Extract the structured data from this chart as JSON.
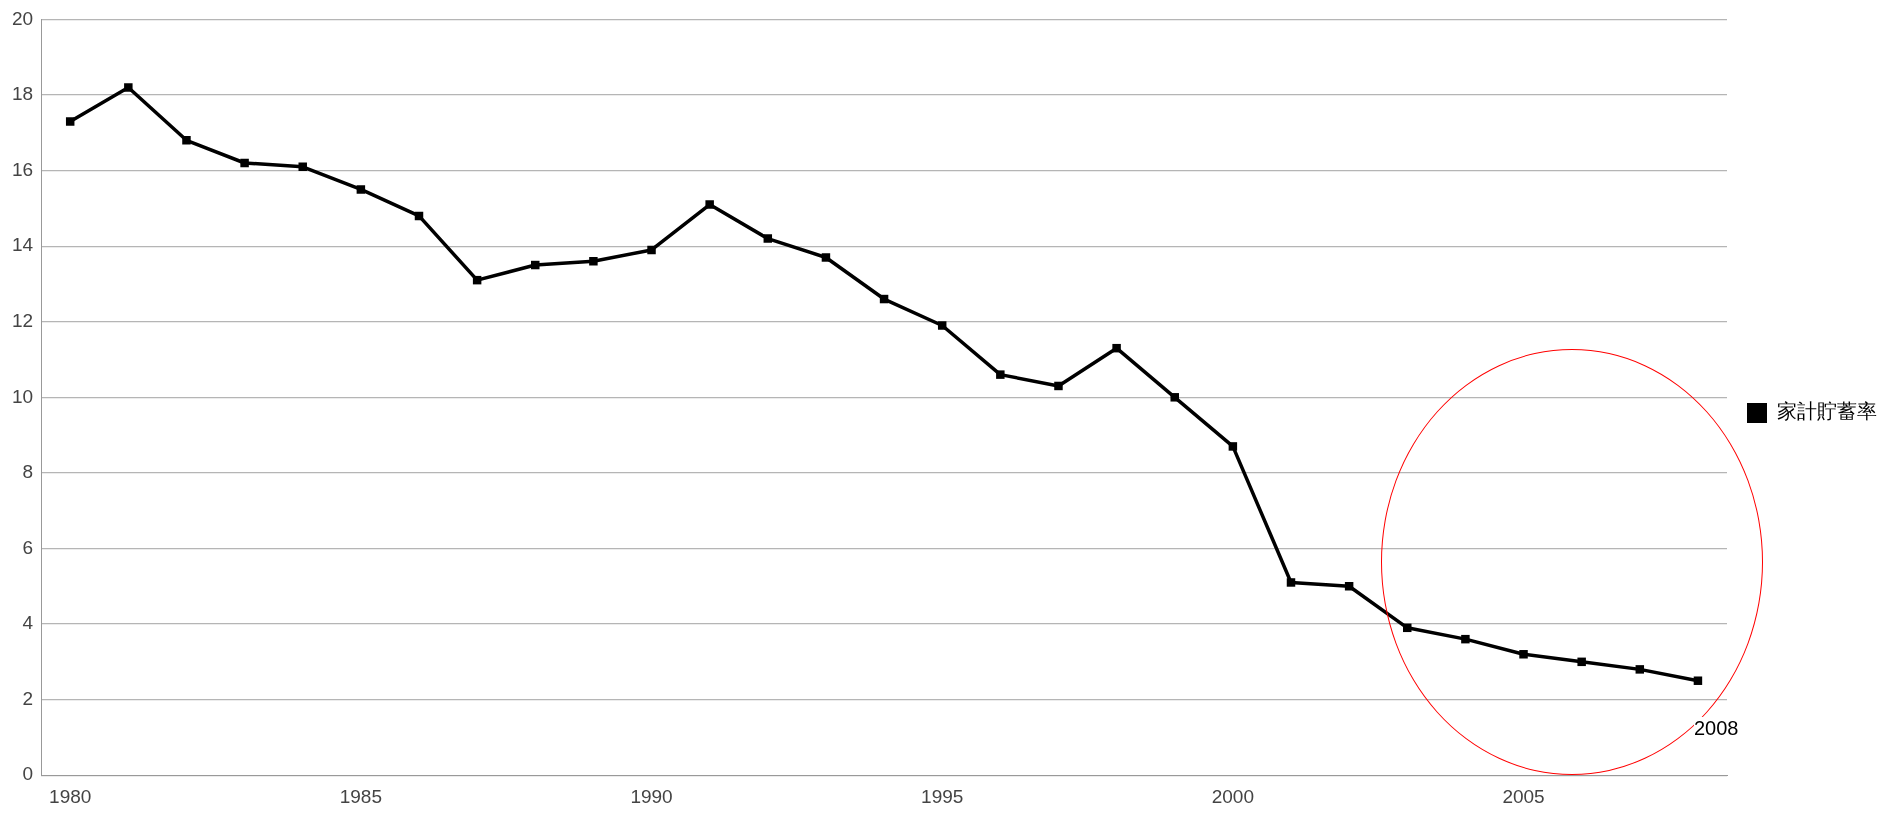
{
  "chart_data": {
    "type": "line",
    "categories": [
      "1980",
      null,
      null,
      null,
      null,
      "1985",
      null,
      null,
      null,
      null,
      "1990",
      null,
      null,
      null,
      null,
      "1995",
      null,
      null,
      null,
      null,
      "2000",
      null,
      null,
      null,
      null,
      "2005",
      null,
      null,
      null
    ],
    "series": [
      {
        "name": "家計貯蓄率",
        "color": "#000000",
        "values": [
          17.3,
          18.2,
          16.8,
          16.2,
          16.1,
          15.5,
          14.8,
          13.1,
          13.5,
          13.6,
          13.9,
          15.1,
          14.2,
          13.7,
          12.6,
          11.9,
          10.6,
          10.3,
          11.3,
          10.0,
          8.7,
          5.1,
          5.0,
          3.9,
          3.6,
          3.2,
          3.0,
          2.8,
          2.5
        ]
      }
    ],
    "ylim": [
      0,
      20
    ],
    "yticks": [
      0,
      2,
      4,
      6,
      8,
      10,
      12,
      14,
      16,
      18,
      20
    ],
    "grid": "y",
    "legend": "right",
    "marker": "square",
    "line_style": "solid",
    "annotations": [
      "2008"
    ]
  }
}
